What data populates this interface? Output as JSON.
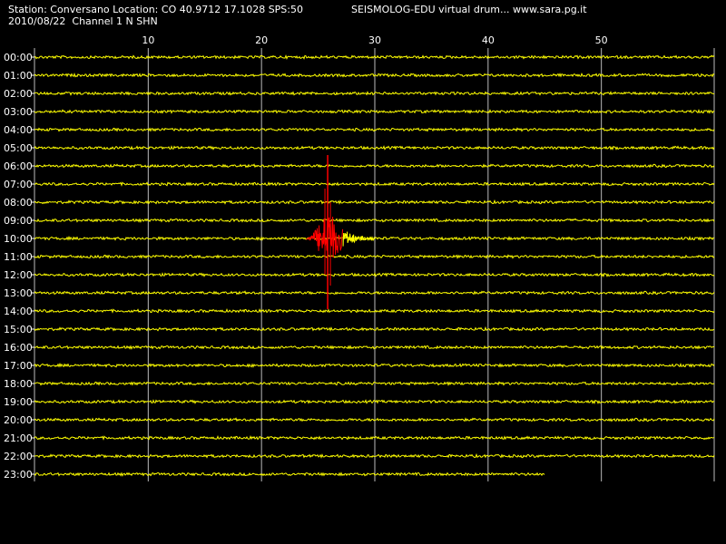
{
  "header": {
    "station_line": "Station: Conversano Location: CO 40.9712 17.1028 SPS:50",
    "date_line": "2010/08/22  Channel 1 N SHN",
    "app_title": "SEISMOLOG-EDU virtual drum... www.sara.pg.it"
  },
  "chart_data": {
    "type": "line",
    "title": "SEISMOLOG-EDU virtual drum... www.sara.pg.it",
    "xlabel": "",
    "ylabel": "",
    "x_ticks": [
      10,
      20,
      30,
      40,
      50
    ],
    "xlim": [
      0,
      60
    ],
    "rows": [
      "00:00",
      "01:00",
      "02:00",
      "03:00",
      "04:00",
      "05:00",
      "06:00",
      "07:00",
      "08:00",
      "09:00",
      "10:00",
      "11:00",
      "12:00",
      "13:00",
      "14:00",
      "15:00",
      "16:00",
      "17:00",
      "18:00",
      "19:00",
      "20:00",
      "21:00",
      "22:00",
      "23:00"
    ],
    "grid": true,
    "trace_color": "#ffff00",
    "event_color": "#ff0000",
    "last_row_end_minute": 45,
    "event": {
      "row": "10:00",
      "start_minute": 24,
      "peak_minute": 26,
      "end_minute": 30
    }
  }
}
